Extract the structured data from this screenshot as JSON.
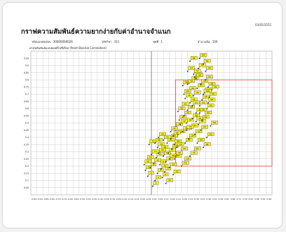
{
  "header": {
    "date": "03/05/2555",
    "title": "กราฟความสัมพันธ์ความยากง่ายกับค่าอำนาจจำแนก",
    "meta": [
      {
        "label": "รหัสแบบทดสอบ",
        "value": "30000000026"
      },
      {
        "label": "รหัสวิชา",
        "value": "311"
      },
      {
        "label": "ชุดที่",
        "value": "1"
      },
      {
        "label": "จำนวนข้อ",
        "value": "100"
      }
    ],
    "subtitle": "ค่าสหสัมพันธ์แบบพอยท์ไบซีเรียล (Point Biserial Correlation)"
  },
  "colors": {
    "grid": "#c8c8c8",
    "center_line": "#707070",
    "criteria_box": "#e05050",
    "label_bg": "#f4ee34",
    "label_border": "#3a3a00",
    "marker": "#222222"
  },
  "chart_data": {
    "type": "scatter",
    "xlim": [
      -1,
      1
    ],
    "ylim": [
      0,
      1
    ],
    "grid": true,
    "x_ticks": [
      "-0.99",
      "-0.94",
      "-0.89",
      "-0.84",
      "-0.79",
      "-0.74",
      "-0.69",
      "-0.64",
      "-0.59",
      "-0.54",
      "-0.49",
      "-0.44",
      "-0.39",
      "-0.34",
      "-0.29",
      "-0.24",
      "-0.19",
      "-0.14",
      "-0.09",
      "-0.04",
      "0.01",
      "0.06",
      "0.11",
      "0.16",
      "0.21",
      "0.26",
      "0.31",
      "0.36",
      "0.41",
      "0.46",
      "0.51",
      "0.56",
      "0.61",
      "0.66",
      "0.71",
      "0.76",
      "0.81",
      "0.86",
      "0.91",
      "0.96"
    ],
    "y_ticks": [
      "0.05",
      "0.1",
      "0.15",
      "0.2",
      "0.25",
      "0.3",
      "0.35",
      "0.4",
      "0.45",
      "0.5",
      "0.55",
      "0.6",
      "0.65",
      "0.7",
      "0.75",
      "0.8",
      "0.85",
      "0.9",
      "0.95"
    ],
    "criteria_region": {
      "x": [
        0.2,
        1.0
      ],
      "y": [
        0.2,
        0.8
      ]
    },
    "points": [
      {
        "label": "1",
        "x": 0.01,
        "y": 0.06
      },
      {
        "label": "2",
        "x": 0.03,
        "y": 0.1
      },
      {
        "label": "3",
        "x": -0.03,
        "y": 0.13
      },
      {
        "label": "4",
        "x": 0.05,
        "y": 0.15
      },
      {
        "label": "5",
        "x": -0.05,
        "y": 0.17
      },
      {
        "label": "6",
        "x": 0.09,
        "y": 0.12
      },
      {
        "label": "7",
        "x": 0.11,
        "y": 0.16
      },
      {
        "label": "8",
        "x": -0.01,
        "y": 0.19
      },
      {
        "label": "9",
        "x": 0.07,
        "y": 0.21
      },
      {
        "label": "10",
        "x": 0.02,
        "y": 0.22
      },
      {
        "label": "11",
        "x": 0.12,
        "y": 0.23
      },
      {
        "label": "12",
        "x": 0.15,
        "y": 0.19
      },
      {
        "label": "13",
        "x": 0.18,
        "y": 0.14
      },
      {
        "label": "14",
        "x": -0.04,
        "y": 0.24
      },
      {
        "label": "15",
        "x": 0.04,
        "y": 0.26
      },
      {
        "label": "16",
        "x": 0.1,
        "y": 0.27
      },
      {
        "label": "17",
        "x": 0.14,
        "y": 0.29
      },
      {
        "label": "18",
        "x": 0.08,
        "y": 0.31
      },
      {
        "label": "19",
        "x": 0.17,
        "y": 0.32
      },
      {
        "label": "20",
        "x": 0.21,
        "y": 0.33
      },
      {
        "label": "21",
        "x": 0.13,
        "y": 0.36
      },
      {
        "label": "22",
        "x": 0.19,
        "y": 0.25
      },
      {
        "label": "23",
        "x": 0.24,
        "y": 0.3
      },
      {
        "label": "24",
        "x": 0.06,
        "y": 0.4
      },
      {
        "label": "25",
        "x": 0.16,
        "y": 0.39
      },
      {
        "label": "26",
        "x": 0.22,
        "y": 0.42
      },
      {
        "label": "27",
        "x": 0.28,
        "y": 0.36
      },
      {
        "label": "28",
        "x": 0.26,
        "y": 0.44
      },
      {
        "label": "29",
        "x": 0.31,
        "y": 0.39
      },
      {
        "label": "30",
        "x": 0.2,
        "y": 0.47
      },
      {
        "label": "31",
        "x": 0.33,
        "y": 0.46
      },
      {
        "label": "32",
        "x": 0.29,
        "y": 0.5
      },
      {
        "label": "33",
        "x": 0.36,
        "y": 0.42
      },
      {
        "label": "34",
        "x": 0.23,
        "y": 0.52
      },
      {
        "label": "35",
        "x": 0.27,
        "y": 0.55
      },
      {
        "label": "36",
        "x": 0.34,
        "y": 0.53
      },
      {
        "label": "37",
        "x": 0.39,
        "y": 0.49
      },
      {
        "label": "38",
        "x": 0.3,
        "y": 0.59
      },
      {
        "label": "39",
        "x": 0.37,
        "y": 0.57
      },
      {
        "label": "40",
        "x": 0.25,
        "y": 0.61
      },
      {
        "label": "41",
        "x": 0.32,
        "y": 0.64
      },
      {
        "label": "42",
        "x": 0.4,
        "y": 0.62
      },
      {
        "label": "43",
        "x": 0.28,
        "y": 0.67
      },
      {
        "label": "44",
        "x": 0.35,
        "y": 0.69
      },
      {
        "label": "45",
        "x": 0.42,
        "y": 0.66
      },
      {
        "label": "46",
        "x": 0.31,
        "y": 0.72
      },
      {
        "label": "47",
        "x": 0.38,
        "y": 0.74
      },
      {
        "label": "48",
        "x": 0.44,
        "y": 0.71
      },
      {
        "label": "49",
        "x": 0.26,
        "y": 0.76
      },
      {
        "label": "50",
        "x": 0.33,
        "y": 0.79
      },
      {
        "label": "51",
        "x": 0.41,
        "y": 0.77
      },
      {
        "label": "52",
        "x": 0.36,
        "y": 0.82
      },
      {
        "label": "53",
        "x": 0.45,
        "y": 0.8
      },
      {
        "label": "54",
        "x": 0.3,
        "y": 0.86
      },
      {
        "label": "55",
        "x": 0.39,
        "y": 0.88
      },
      {
        "label": "56",
        "x": 0.43,
        "y": 0.91
      },
      {
        "label": "57",
        "x": 0.35,
        "y": 0.84
      },
      {
        "label": "58",
        "x": 0.47,
        "y": 0.75
      },
      {
        "label": "59",
        "x": 0.46,
        "y": 0.6
      },
      {
        "label": "60",
        "x": 0.48,
        "y": 0.68
      },
      {
        "label": "61",
        "x": 0.5,
        "y": 0.73
      },
      {
        "label": "62",
        "x": 0.44,
        "y": 0.55
      },
      {
        "label": "63",
        "x": 0.41,
        "y": 0.45
      },
      {
        "label": "64",
        "x": 0.38,
        "y": 0.36
      },
      {
        "label": "65",
        "x": 0.46,
        "y": 0.4
      },
      {
        "label": "66",
        "x": 0.43,
        "y": 0.33
      },
      {
        "label": "67",
        "x": 0.35,
        "y": 0.3
      },
      {
        "label": "68",
        "x": 0.49,
        "y": 0.48
      },
      {
        "label": "69",
        "x": 0.27,
        "y": 0.23
      },
      {
        "label": "70",
        "x": 0.32,
        "y": 0.27
      },
      {
        "label": "71",
        "x": 0.25,
        "y": 0.2
      },
      {
        "label": "72",
        "x": 0.0,
        "y": 0.28
      },
      {
        "label": "73",
        "x": -0.02,
        "y": 0.35
      },
      {
        "label": "74",
        "x": 0.05,
        "y": 0.33
      },
      {
        "label": "75",
        "x": 0.1,
        "y": 0.38
      },
      {
        "label": "76",
        "x": 0.18,
        "y": 0.41
      },
      {
        "label": "77",
        "x": 0.24,
        "y": 0.49
      },
      {
        "label": "78",
        "x": 0.29,
        "y": 0.45
      },
      {
        "label": "79",
        "x": 0.37,
        "y": 0.51
      },
      {
        "label": "80",
        "x": 0.4,
        "y": 0.57
      },
      {
        "label": "81",
        "x": 0.34,
        "y": 0.62
      },
      {
        "label": "82",
        "x": 0.42,
        "y": 0.52
      },
      {
        "label": "83",
        "x": 0.22,
        "y": 0.58
      },
      {
        "label": "84",
        "x": 0.27,
        "y": 0.7
      },
      {
        "label": "85",
        "x": 0.45,
        "y": 0.86
      },
      {
        "label": "86",
        "x": 0.32,
        "y": 0.93
      },
      {
        "label": "87",
        "x": 0.4,
        "y": 0.95
      },
      {
        "label": "88",
        "x": 0.37,
        "y": 0.81
      },
      {
        "label": "89",
        "x": 0.19,
        "y": 0.35
      },
      {
        "label": "90",
        "x": 0.15,
        "y": 0.25
      },
      {
        "label": "91",
        "x": 0.08,
        "y": 0.18
      },
      {
        "label": "92",
        "x": 0.12,
        "y": 0.08
      },
      {
        "label": "93",
        "x": -0.06,
        "y": 0.21
      },
      {
        "label": "94",
        "x": 0.06,
        "y": 0.29
      },
      {
        "label": "95",
        "x": 0.2,
        "y": 0.27
      },
      {
        "label": "96",
        "x": 0.03,
        "y": 0.36
      },
      {
        "label": "97",
        "x": 0.16,
        "y": 0.44
      },
      {
        "label": "98",
        "x": 0.47,
        "y": 0.64
      },
      {
        "label": "99",
        "x": 0.3,
        "y": 0.77
      },
      {
        "label": "100",
        "x": 0.43,
        "y": 0.7
      }
    ]
  }
}
